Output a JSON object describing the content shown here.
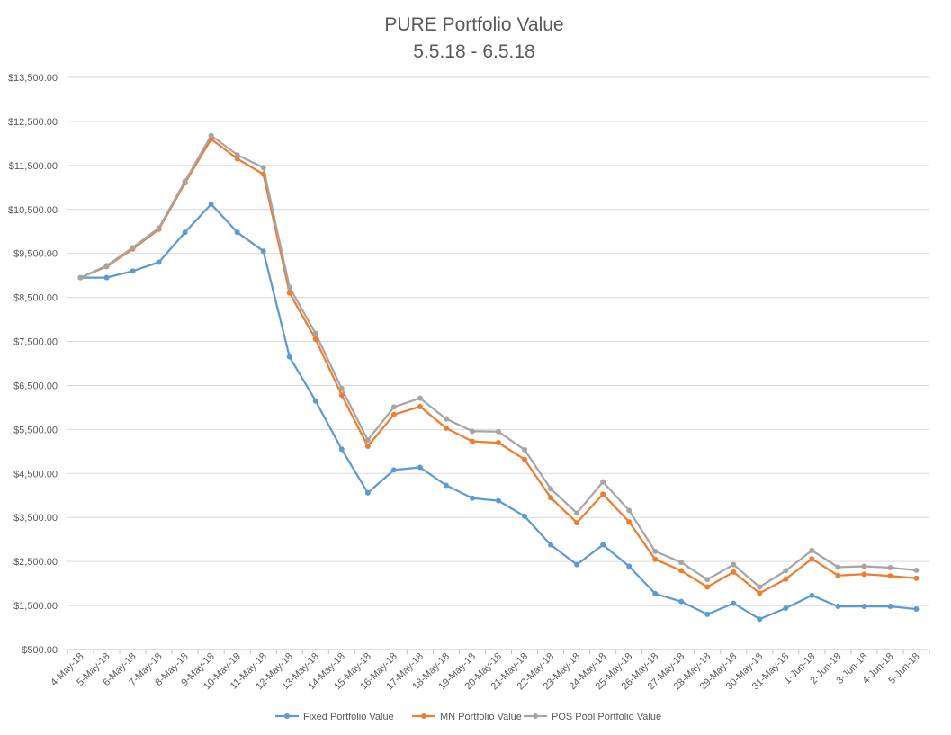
{
  "chart_data": {
    "type": "line",
    "title": "PURE Portfolio Value",
    "subtitle": "5.5.18 - 6.5.18",
    "xlabel": "",
    "ylabel": "",
    "ylim": [
      500,
      13500
    ],
    "yticks": [
      "$500.00",
      "$1,500.00",
      "$2,500.00",
      "$3,500.00",
      "$4,500.00",
      "$5,500.00",
      "$6,500.00",
      "$7,500.00",
      "$8,500.00",
      "$9,500.00",
      "$10,500.00",
      "$11,500.00",
      "$12,500.00",
      "$13,500.00"
    ],
    "grid": true,
    "legend_position": "bottom",
    "categories": [
      "4-May-18",
      "5-May-18",
      "6-May-18",
      "7-May-18",
      "8-May-18",
      "9-May-18",
      "10-May-18",
      "11-May-18",
      "12-May-18",
      "13-May-18",
      "14-May-18",
      "15-May-18",
      "16-May-18",
      "17-May-18",
      "18-May-18",
      "19-May-18",
      "20-May-18",
      "21-May-18",
      "22-May-18",
      "23-May-18",
      "24-May-18",
      "25-May-18",
      "26-May-18",
      "27-May-18",
      "28-May-18",
      "29-May-18",
      "30-May-18",
      "31-May-18",
      "1-Jun-18",
      "2-Jun-18",
      "3-Jun-18",
      "4-Jun-18",
      "5-Jun-18"
    ],
    "series": [
      {
        "name": "Fixed Portfolio Value",
        "color": "#5b9bd5",
        "values": [
          8950,
          8950,
          9100,
          9300,
          9980,
          10620,
          9980,
          9550,
          7150,
          6150,
          5050,
          4060,
          4580,
          4640,
          4230,
          3940,
          3880,
          3530,
          2880,
          2430,
          2880,
          2390,
          1770,
          1590,
          1300,
          1550,
          1190,
          1440,
          1730,
          1480,
          1480,
          1480,
          1420
        ]
      },
      {
        "name": "MN Portfolio Value",
        "color": "#ed7d31",
        "values": [
          8950,
          9200,
          9600,
          10050,
          11100,
          12100,
          11650,
          11300,
          8600,
          7550,
          6280,
          5120,
          5840,
          6020,
          5530,
          5230,
          5200,
          4820,
          3950,
          3380,
          4030,
          3400,
          2550,
          2290,
          1920,
          2260,
          1780,
          2100,
          2560,
          2180,
          2210,
          2170,
          2120
        ]
      },
      {
        "name": "POS Pool Portfolio Value",
        "color": "#a5a5a5",
        "values": [
          8950,
          9220,
          9630,
          10080,
          11140,
          12180,
          11740,
          11450,
          8730,
          7680,
          6430,
          5260,
          6010,
          6210,
          5740,
          5460,
          5450,
          5040,
          4150,
          3600,
          4310,
          3660,
          2730,
          2480,
          2090,
          2430,
          1920,
          2290,
          2750,
          2370,
          2390,
          2360,
          2300
        ]
      }
    ]
  }
}
